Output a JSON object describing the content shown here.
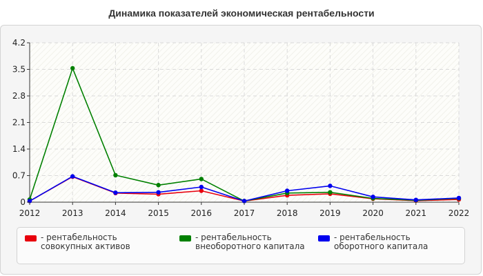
{
  "chart_data": {
    "type": "line",
    "title": "Динамика показателей экономическая рентабельности",
    "x": [
      "2012",
      "2013",
      "2014",
      "2015",
      "2016",
      "2017",
      "2018",
      "2019",
      "2020",
      "2021",
      "2022"
    ],
    "ylim": [
      0,
      4.2
    ],
    "yticks": [
      "0",
      "0.7",
      "1.4",
      "2.1",
      "2.8",
      "3.5",
      "4.2"
    ],
    "grid": true,
    "legend_position": "bottom",
    "series": [
      {
        "name": "- рентабельность совокупных активов",
        "color": "#e8000d",
        "values": [
          0.03,
          0.67,
          0.24,
          0.21,
          0.3,
          0.03,
          0.18,
          0.22,
          0.09,
          0.04,
          0.07
        ]
      },
      {
        "name": "- рентабельность внеоборотного капитала",
        "color": "#008000",
        "values": [
          0.07,
          3.53,
          0.71,
          0.45,
          0.61,
          0.03,
          0.24,
          0.26,
          0.1,
          0.05,
          0.1
        ]
      },
      {
        "name": "- рентабельность оборотного капитала",
        "color": "#0000ee",
        "values": [
          0.03,
          0.68,
          0.25,
          0.26,
          0.4,
          0.03,
          0.3,
          0.43,
          0.14,
          0.06,
          0.11
        ]
      }
    ]
  }
}
